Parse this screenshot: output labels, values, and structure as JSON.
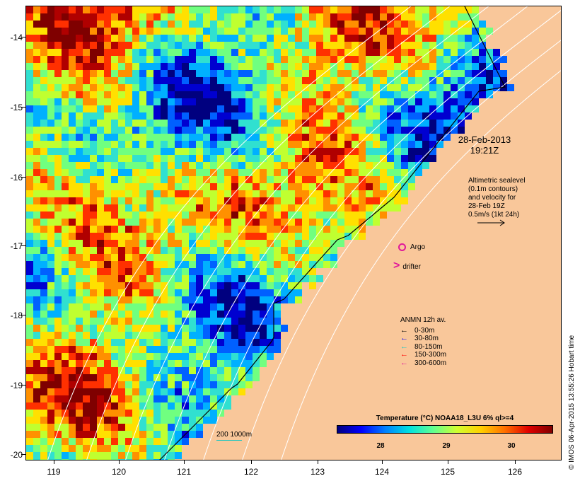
{
  "map": {
    "date": "28-Feb-2013",
    "time": "19:21Z",
    "altimetry": [
      "Altimetric sealevel",
      "(0.1m contours)",
      "and velocity for",
      "28-Feb 19Z",
      "0.5m/s (1kt 24h)"
    ],
    "argo_label": "Argo",
    "drifter_label": "drifter",
    "anmn_title": "ANMN 12h av.",
    "anmn_depths": [
      {
        "label": "0-30m",
        "color": "#000000"
      },
      {
        "label": "30-80m",
        "color": "#0000ff"
      },
      {
        "label": "80-150m",
        "color": "#18c8c8"
      },
      {
        "label": "150-300m",
        "color": "#ff0000"
      },
      {
        "label": "300-600m",
        "color": "#e0189a"
      }
    ],
    "isobath_label": "200  1000m",
    "colorbar_title": "Temperature (°C) NOAA18_L3U 6% ql>=4",
    "colorbar_ticks": [
      "28",
      "29",
      "30"
    ],
    "credit": "© IMOS 06-Apr-2015 13:55:26 Hobart time",
    "y_ticks": [
      "-14",
      "-15",
      "-16",
      "-17",
      "-18",
      "-19",
      "-20"
    ],
    "x_ticks": [
      "119",
      "120",
      "121",
      "122",
      "123",
      "124",
      "125",
      "126"
    ],
    "colors": {
      "land": "#f9c79a",
      "argo": "#e0189a",
      "isobath": "#19c6c0"
    }
  }
}
